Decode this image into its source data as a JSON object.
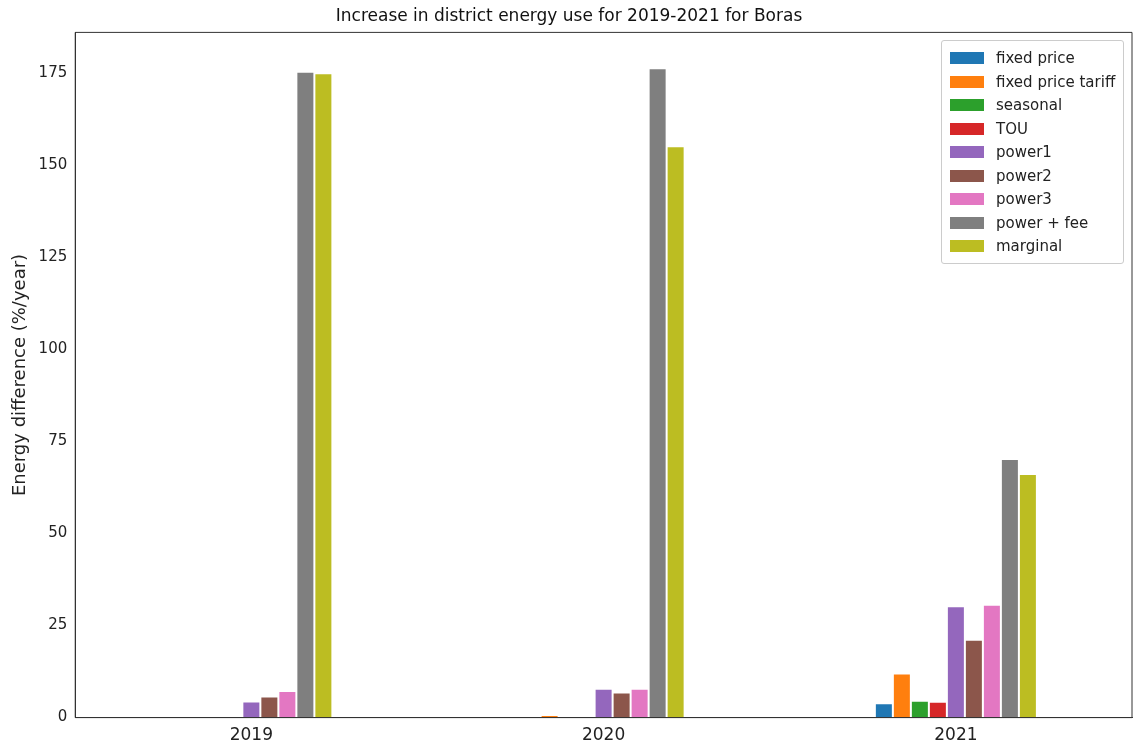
{
  "chart_data": {
    "type": "bar",
    "title": "Increase in district energy use for 2019-2021 for Boras",
    "ylabel": "Energy difference (%/year)",
    "categories": [
      "2019",
      "2020",
      "2021"
    ],
    "series": [
      {
        "name": "fixed price",
        "color": "#1f77b4",
        "values": [
          0,
          0,
          3.9
        ]
      },
      {
        "name": "fixed price tariff",
        "color": "#ff7f0e",
        "values": [
          0,
          0.7,
          12.0
        ]
      },
      {
        "name": "seasonal",
        "color": "#2ca02c",
        "values": [
          0,
          0,
          4.6
        ]
      },
      {
        "name": "TOU",
        "color": "#d62728",
        "values": [
          0,
          0,
          4.3
        ]
      },
      {
        "name": "power1",
        "color": "#9467bd",
        "values": [
          4.4,
          7.8,
          30.2
        ]
      },
      {
        "name": "power2",
        "color": "#8c564b",
        "values": [
          5.7,
          6.8,
          21.1
        ]
      },
      {
        "name": "power3",
        "color": "#e377c2",
        "values": [
          7.2,
          7.8,
          30.6
        ]
      },
      {
        "name": "power + fee",
        "color": "#7f7f7f",
        "values": [
          175.3,
          176.3,
          70.2
        ]
      },
      {
        "name": "marginal",
        "color": "#bcbd22",
        "values": [
          174.9,
          155.1,
          66.1
        ]
      }
    ],
    "ylim": [
      0,
      186
    ],
    "yticks": [
      0,
      25,
      50,
      75,
      100,
      125,
      150,
      175
    ],
    "grid": false,
    "legend": "top right"
  }
}
